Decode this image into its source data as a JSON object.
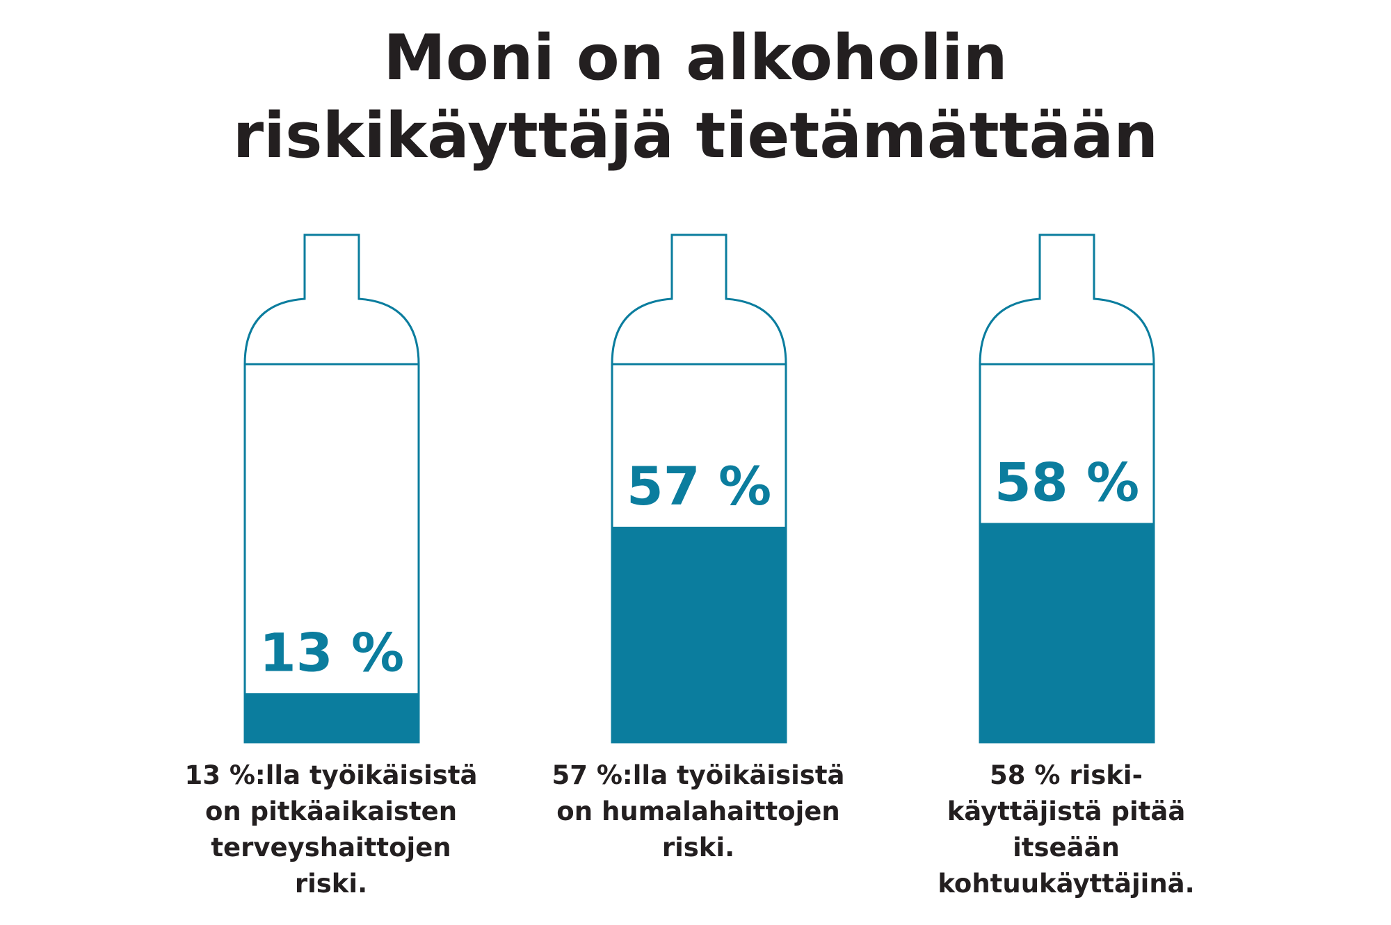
{
  "title_lines": [
    "Moni on alkoholin",
    "riskikäyttäjä tietämättään"
  ],
  "colors": {
    "fill": "#0b7d9e",
    "outline": "#0b7d9e",
    "text": "#231f20"
  },
  "chart_data": {
    "type": "bar",
    "title": "Moni on alkoholin riskikäyttäjä tietämättään",
    "categories": [
      "13 %:lla työikäisistä on pitkäaikaisten terveyshaittojen riski.",
      "57 %:lla työikäisistä on humalahaittojen riski.",
      "58 % riskikäyttäjistä pitää itseään kohtuukäyttäjinä."
    ],
    "values": [
      13,
      57,
      58
    ],
    "unit": "%",
    "value_labels": [
      "13 %",
      "57 %",
      "58 %"
    ],
    "ylim": [
      0,
      100
    ],
    "grid": false,
    "legend": "none"
  },
  "captions": [
    [
      "13 %:lla työikäisistä",
      "on pitkäaikaisten",
      "terveyshaittojen",
      "riski."
    ],
    [
      "57 %:lla työikäisistä",
      "on humalahaittojen",
      "riski."
    ],
    [
      "58 % riski-",
      "käyttäjistä pitää",
      "itseään",
      "kohtuukäyttäjinä."
    ]
  ]
}
